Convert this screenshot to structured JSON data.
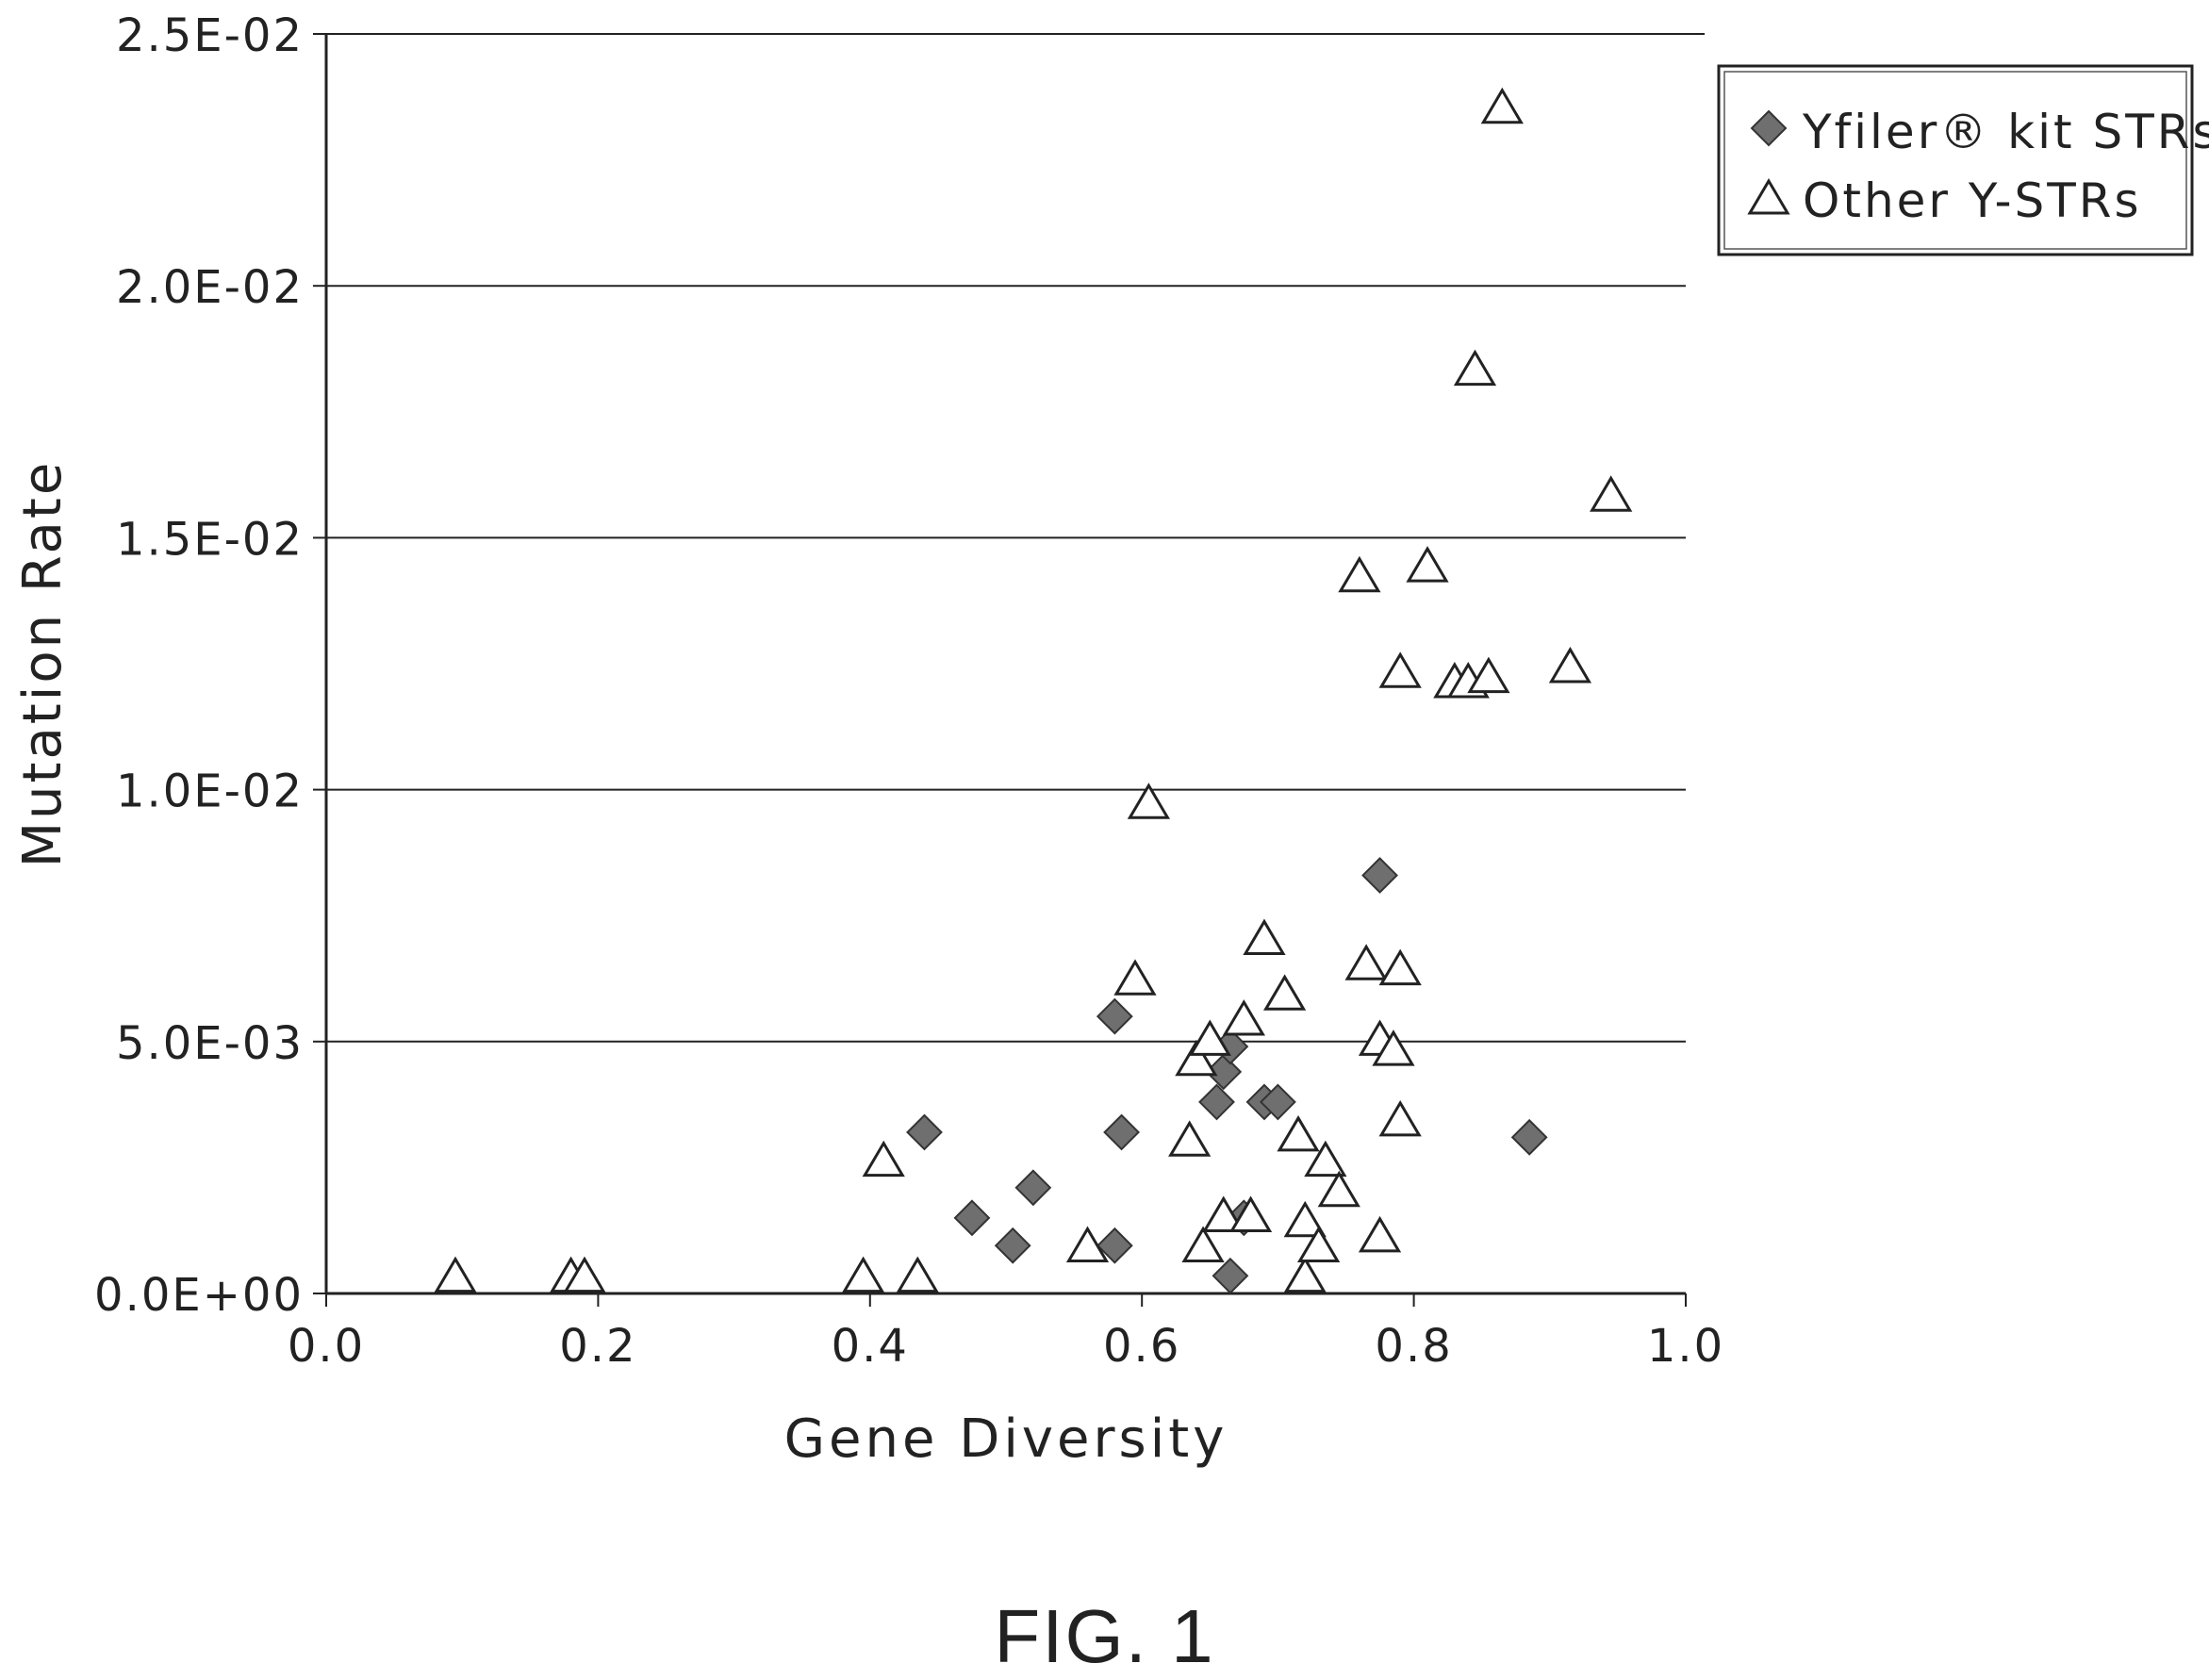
{
  "chart_data": {
    "type": "scatter",
    "title": "",
    "xlabel": "Gene Diversity",
    "ylabel": "Mutation Rate",
    "xlim": [
      0.0,
      1.0
    ],
    "ylim": [
      0.0,
      0.025
    ],
    "x_ticks": [
      "0.0",
      "0.2",
      "0.4",
      "0.6",
      "0.8",
      "1.0"
    ],
    "y_ticks": [
      "0.0E+00",
      "5.0E-03",
      "1.0E-02",
      "1.5E-02",
      "2.0E-02",
      "2.5E-02"
    ],
    "grid": "horizontal",
    "legend_position": "top-right",
    "series": [
      {
        "name": "Yfiler® kit STRs",
        "marker": "diamond",
        "color": "#6f6f6f",
        "points": [
          [
            0.44,
            0.0032
          ],
          [
            0.475,
            0.0015
          ],
          [
            0.505,
            0.00095
          ],
          [
            0.52,
            0.0021
          ],
          [
            0.58,
            0.0055
          ],
          [
            0.585,
            0.0032
          ],
          [
            0.58,
            0.00095
          ],
          [
            0.655,
            0.0038
          ],
          [
            0.66,
            0.0044
          ],
          [
            0.665,
            0.0049
          ],
          [
            0.665,
            0.00035
          ],
          [
            0.69,
            0.0038
          ],
          [
            0.7,
            0.0038
          ],
          [
            0.675,
            0.0015
          ],
          [
            0.775,
            0.0083
          ],
          [
            0.885,
            0.0031
          ]
        ]
      },
      {
        "name": "Other Y-STRs",
        "marker": "triangle-open",
        "color": "#222222",
        "points": [
          [
            0.095,
            0.0003
          ],
          [
            0.18,
            0.0003
          ],
          [
            0.19,
            0.0003
          ],
          [
            0.395,
            0.0003
          ],
          [
            0.41,
            0.0026
          ],
          [
            0.435,
            0.0003
          ],
          [
            0.56,
            0.0009
          ],
          [
            0.595,
            0.0062
          ],
          [
            0.605,
            0.0097
          ],
          [
            0.635,
            0.003
          ],
          [
            0.64,
            0.0046
          ],
          [
            0.645,
            0.0009
          ],
          [
            0.65,
            0.005
          ],
          [
            0.66,
            0.0015
          ],
          [
            0.675,
            0.0054
          ],
          [
            0.68,
            0.0015
          ],
          [
            0.69,
            0.007
          ],
          [
            0.705,
            0.0059
          ],
          [
            0.715,
            0.0031
          ],
          [
            0.72,
            0.0014
          ],
          [
            0.72,
            0.0003
          ],
          [
            0.73,
            0.0009
          ],
          [
            0.735,
            0.0026
          ],
          [
            0.745,
            0.002
          ],
          [
            0.76,
            0.0142
          ],
          [
            0.765,
            0.0065
          ],
          [
            0.775,
            0.005
          ],
          [
            0.775,
            0.0011
          ],
          [
            0.785,
            0.0048
          ],
          [
            0.79,
            0.0123
          ],
          [
            0.79,
            0.0034
          ],
          [
            0.79,
            0.0064
          ],
          [
            0.81,
            0.0144
          ],
          [
            0.83,
            0.0121
          ],
          [
            0.84,
            0.0121
          ],
          [
            0.845,
            0.0183
          ],
          [
            0.855,
            0.0122
          ],
          [
            0.865,
            0.0235
          ],
          [
            0.915,
            0.0124
          ],
          [
            0.945,
            0.0158
          ]
        ]
      }
    ]
  },
  "figure_label": "FIG. 1"
}
